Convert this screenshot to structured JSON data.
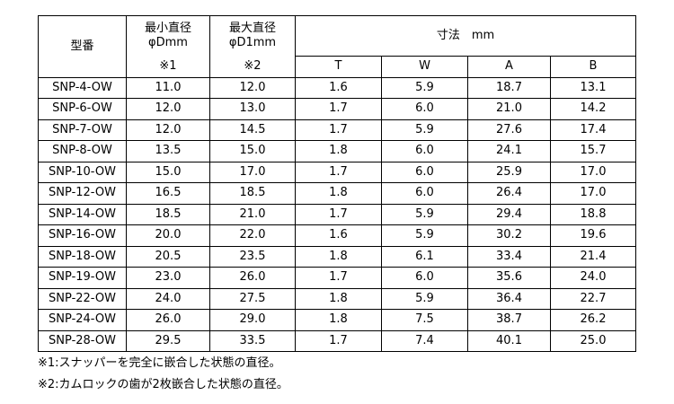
{
  "table": {
    "header": {
      "model": "型番",
      "min_diameter": [
        "最小直径",
        "φDmm",
        "※1"
      ],
      "max_diameter": [
        "最大直径",
        "φD1mm",
        "※2"
      ],
      "dimensions": "寸法　mm",
      "columns": [
        "T",
        "W",
        "A",
        "B"
      ]
    },
    "rows": [
      [
        "SNP-4-OW",
        "11.0",
        "12.0",
        "1.6",
        "5.9",
        "18.7",
        "13.1"
      ],
      [
        "SNP-6-OW",
        "12.0",
        "13.0",
        "1.7",
        "6.0",
        "21.0",
        "14.2"
      ],
      [
        "SNP-7-OW",
        "12.0",
        "14.5",
        "1.7",
        "5.9",
        "27.6",
        "17.4"
      ],
      [
        "SNP-8-OW",
        "13.5",
        "15.0",
        "1.8",
        "6.0",
        "24.1",
        "15.7"
      ],
      [
        "SNP-10-OW",
        "15.0",
        "17.0",
        "1.7",
        "6.0",
        "25.9",
        "17.0"
      ],
      [
        "SNP-12-OW",
        "16.5",
        "18.5",
        "1.8",
        "6.0",
        "26.4",
        "17.0"
      ],
      [
        "SNP-14-OW",
        "18.5",
        "21.0",
        "1.7",
        "5.9",
        "29.4",
        "18.8"
      ],
      [
        "SNP-16-OW",
        "20.0",
        "22.0",
        "1.6",
        "5.9",
        "30.2",
        "19.6"
      ],
      [
        "SNP-18-OW",
        "20.5",
        "23.5",
        "1.8",
        "6.1",
        "33.4",
        "21.4"
      ],
      [
        "SNP-19-OW",
        "23.0",
        "26.0",
        "1.7",
        "6.0",
        "35.6",
        "24.0"
      ],
      [
        "SNP-22-OW",
        "24.0",
        "27.5",
        "1.8",
        "5.9",
        "36.4",
        "22.7"
      ],
      [
        "SNP-24-OW",
        "26.0",
        "29.0",
        "1.8",
        "7.5",
        "38.7",
        "26.2"
      ],
      [
        "SNP-28-OW",
        "29.5",
        "33.5",
        "1.7",
        "7.4",
        "40.1",
        "25.0"
      ]
    ]
  },
  "notes": [
    "※1:スナッパーを完全に嵌合した状態の直径。",
    "※2:カムロックの歯が2枚嵌合した状態の直径。"
  ]
}
